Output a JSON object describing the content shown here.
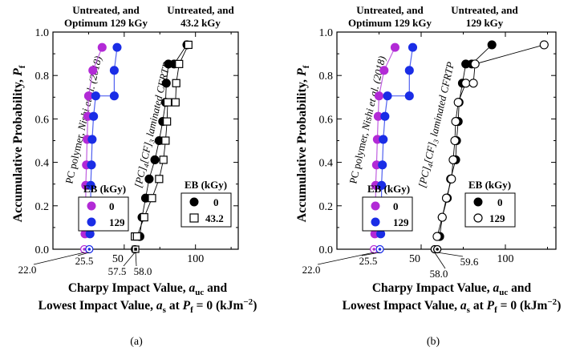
{
  "figure": {
    "y_axis_label_main": "Accumulative Probability, ",
    "y_axis_label_var": "P",
    "y_axis_label_sub": "f",
    "x_axis_label_line1_main": "Charpy Impact Value, ",
    "x_axis_label_line1_var": "a",
    "x_axis_label_line1_sub": "uc",
    "x_axis_label_line1_end": " and",
    "x_axis_label_line2_main": "Lowest Impact Value, ",
    "x_axis_label_line2_var": "a",
    "x_axis_label_line2_sub": "s",
    "x_axis_label_line2_mid": " at ",
    "x_axis_label_line2_var2": "P",
    "x_axis_label_line2_sub2": "f",
    "x_axis_label_line2_end": " = 0 (kJm",
    "x_axis_label_line2_sup": "−2",
    "x_axis_label_line2_close": ")",
    "pc_annotation_main": "PC polymer, ",
    "pc_annotation_ref": "Nishi et al. (2018)",
    "cfrtp_annotation_a": "[PC]",
    "cfrtp_annotation_b": "4",
    "cfrtp_annotation_c": "[CF]",
    "cfrtp_annotation_d": "3",
    "cfrtp_annotation_e": " laminated CFRTP",
    "legend_title": "EB (kGy)",
    "colors": {
      "magenta": "#b22ad6",
      "blue": "#1a2de6",
      "black": "#000000",
      "line_magenta": "#c060e0",
      "line_blue": "#5060f0"
    }
  },
  "chart_data": [
    {
      "type": "scatter",
      "panel_label": "(a)",
      "xlim": [
        0,
        130
      ],
      "ylim": [
        0,
        1.0
      ],
      "y_ticks": [
        "0.0",
        "0.2",
        "0.4",
        "0.6",
        "0.8",
        "1.0"
      ],
      "x_ticks": [
        "50",
        "100"
      ],
      "top_label_left": [
        "Untreated, and",
        "Optimum 129 kGy"
      ],
      "top_label_right": [
        "Untreated, and",
        "43.2 kGy"
      ],
      "left_legend": [
        {
          "label": "0",
          "marker": "magenta-filled"
        },
        {
          "label": "129",
          "marker": "blue-filled"
        }
      ],
      "right_legend": [
        {
          "label": "0",
          "marker": "black-filled"
        },
        {
          "label": "43.2",
          "marker": "black-open-square"
        }
      ],
      "annotations": [
        {
          "text": "22.0",
          "x": 22.0
        },
        {
          "text": "25.5",
          "x": 25.5
        },
        {
          "text": "57.5",
          "x": 57.5
        },
        {
          "text": "58.0",
          "x": 58.0
        }
      ],
      "series": [
        {
          "name": "0",
          "group": "PC",
          "marker": "circle",
          "fill": "magenta",
          "x": [
            22.5,
            23.0,
            23.0,
            23.5,
            24.0,
            24.5,
            25.0,
            28.0,
            34.5,
            22.0
          ],
          "y": [
            0.0706,
            0.1765,
            0.2941,
            0.3882,
            0.5059,
            0.6118,
            0.7059,
            0.8235,
            0.9294,
            0.0
          ]
        },
        {
          "name": "129",
          "group": "PC",
          "marker": "circle",
          "fill": "blue",
          "x": [
            26.0,
            26.5,
            26.5,
            27.0,
            27.5,
            28.5,
            30.0,
            43.0,
            43.0,
            45.0,
            25.5
          ],
          "y": [
            0.0706,
            0.1765,
            0.2941,
            0.3882,
            0.5059,
            0.6118,
            0.7059,
            0.7059,
            0.8235,
            0.9294,
            0.0
          ]
        },
        {
          "name": "0",
          "group": "CFRTP",
          "marker": "circle",
          "fill": "black",
          "x": [
            61.0,
            62.5,
            65.0,
            67.5,
            71.5,
            74.5,
            77.0,
            79.0,
            79.5,
            81.0,
            85.0,
            94.0,
            57.5
          ],
          "y": [
            0.0588,
            0.1471,
            0.2353,
            0.3235,
            0.4118,
            0.5,
            0.5882,
            0.6765,
            0.7647,
            0.8529,
            0.8529,
            0.9412,
            0.0
          ]
        },
        {
          "name": "43.2",
          "group": "CFRTP",
          "marker": "square",
          "fill": "none",
          "x": [
            57.5,
            59.0,
            64.0,
            69.5,
            74.5,
            77.5,
            79.0,
            80.0,
            80.5,
            86.0,
            86.5,
            88.5,
            95.0,
            58.0
          ],
          "y": [
            0.0588,
            0.0588,
            0.1471,
            0.2353,
            0.3235,
            0.4118,
            0.5,
            0.5882,
            0.6765,
            0.6765,
            0.7647,
            0.8529,
            0.9412,
            0.0
          ]
        }
      ]
    },
    {
      "type": "scatter",
      "panel_label": "(b)",
      "xlim": [
        0,
        130
      ],
      "ylim": [
        0,
        1.0
      ],
      "y_ticks": [
        "0.0",
        "0.2",
        "0.4",
        "0.6",
        "0.8",
        "1.0"
      ],
      "x_ticks": [
        "50",
        "100"
      ],
      "top_label_left": [
        "Untreated, and",
        "Optimum 129 kGy"
      ],
      "top_label_right": [
        "Untreated, and",
        "129 kGy"
      ],
      "left_legend": [
        {
          "label": "0",
          "marker": "magenta-filled"
        },
        {
          "label": "129",
          "marker": "blue-filled"
        }
      ],
      "right_legend": [
        {
          "label": "0",
          "marker": "black-filled"
        },
        {
          "label": "129",
          "marker": "black-open-circle"
        }
      ],
      "annotations": [
        {
          "text": "22.0",
          "x": 22.0
        },
        {
          "text": "25.5",
          "x": 25.5
        },
        {
          "text": "58.0",
          "x": 58.0
        },
        {
          "text": "59.6",
          "x": 59.6
        }
      ],
      "series": [
        {
          "name": "0",
          "group": "PC",
          "marker": "circle",
          "fill": "magenta",
          "x": [
            22.5,
            23.0,
            23.0,
            23.5,
            24.0,
            24.5,
            25.0,
            28.0,
            34.5,
            22.0
          ],
          "y": [
            0.0706,
            0.1765,
            0.2941,
            0.3882,
            0.5059,
            0.6118,
            0.7059,
            0.8235,
            0.9294,
            0.0
          ]
        },
        {
          "name": "129",
          "group": "PC",
          "marker": "circle",
          "fill": "blue",
          "x": [
            26.0,
            26.5,
            26.5,
            27.0,
            27.5,
            28.5,
            30.0,
            43.0,
            43.0,
            45.0,
            25.5
          ],
          "y": [
            0.0706,
            0.1765,
            0.2941,
            0.3882,
            0.5059,
            0.6118,
            0.7059,
            0.7059,
            0.8235,
            0.9294,
            0.0
          ]
        },
        {
          "name": "0",
          "group": "CFRTP",
          "marker": "circle",
          "fill": "black",
          "x": [
            61.0,
            62.5,
            65.5,
            67.5,
            70.5,
            71.0,
            72.0,
            72.5,
            74.5,
            76.5,
            80.0,
            92.0,
            58.0
          ],
          "y": [
            0.0588,
            0.1471,
            0.2353,
            0.3235,
            0.4118,
            0.5,
            0.5882,
            0.6765,
            0.7647,
            0.8529,
            0.8529,
            0.9412,
            0.0
          ]
        },
        {
          "name": "129",
          "group": "CFRTP",
          "marker": "circle",
          "fill": "none",
          "x": [
            59.5,
            62.5,
            65.0,
            68.0,
            69.0,
            70.0,
            70.5,
            72.0,
            76.5,
            81.0,
            82.0,
            123.0,
            59.6
          ],
          "y": [
            0.0588,
            0.1471,
            0.2353,
            0.3235,
            0.4118,
            0.5,
            0.5882,
            0.6765,
            0.7647,
            0.7647,
            0.8529,
            0.9412,
            0.0
          ]
        }
      ]
    }
  ]
}
